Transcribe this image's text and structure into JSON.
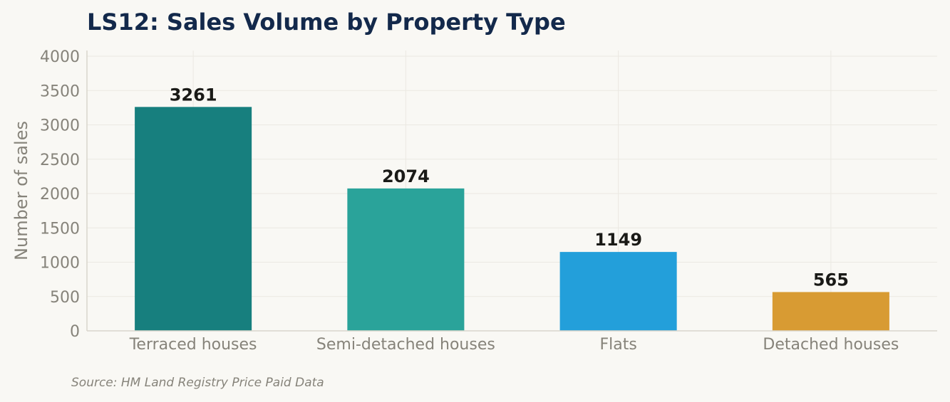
{
  "chart_data": {
    "type": "bar",
    "title": "LS12: Sales Volume by Property Type",
    "xlabel": "",
    "ylabel": "Number of sales",
    "categories": [
      "Terraced houses",
      "Semi-detached houses",
      "Flats",
      "Detached houses"
    ],
    "values": [
      3261,
      2074,
      1149,
      565
    ],
    "data_labels": [
      "3261",
      "2074",
      "1149",
      "565"
    ],
    "bar_colors": [
      "#177f7e",
      "#2aa39a",
      "#239fda",
      "#d89b33"
    ],
    "ylim": [
      0,
      4000
    ],
    "yticks": [
      0,
      500,
      1000,
      1500,
      2000,
      2500,
      3000,
      3500,
      4000
    ],
    "ytick_labels": [
      "0",
      "500",
      "1000",
      "1500",
      "2000",
      "2500",
      "3000",
      "3500",
      "4000"
    ],
    "grid": true,
    "legend": "none"
  },
  "source": "Source: HM Land Registry Price Paid Data",
  "colors": {
    "background": "#f9f8f4",
    "title": "#13294b",
    "axis_text": "#86837a",
    "data_label": "#1a1a17"
  }
}
